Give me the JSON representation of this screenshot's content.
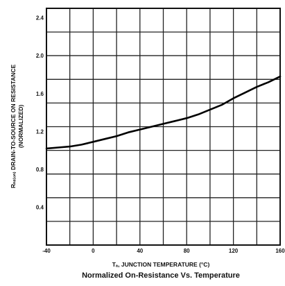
{
  "chart_data": {
    "type": "line",
    "title": "Normalized On-Resistance Vs. Temperature",
    "xlabel": "Tₐ, JUNCTION TEMPERATURE (°C)",
    "ylabel": "Rₙₛ₍ₒₙ₎, DRAIN-TO-SOURCE ON RESISTANCE (NORMALIZED)",
    "ylabel_line1": "Rₙₛ₍ₒₙ₎ DRAIN-TO-SOURCE ON RESISTANCE",
    "ylabel_line2": "(NORMALIZED)",
    "xlim": [
      -40,
      160
    ],
    "ylim": [
      0.0,
      2.5
    ],
    "grid": true,
    "x_ticks": [
      -40,
      0,
      40,
      80,
      120,
      160
    ],
    "x_tick_labels": [
      "-40",
      "0",
      "40",
      "80",
      "120",
      "160"
    ],
    "y_ticks": [
      0.4,
      0.8,
      1.2,
      1.6,
      2.0,
      2.4
    ],
    "y_tick_labels": [
      "0.4",
      "0.8",
      "1.2",
      "1.6",
      "2.0",
      "2.4"
    ],
    "series": [
      {
        "x": [
          -40,
          -30,
          -20,
          -10,
          0,
          10,
          20,
          30,
          40,
          50,
          60,
          70,
          80,
          90,
          100,
          110,
          120,
          130,
          140,
          150,
          160
        ],
        "y": [
          1.02,
          1.03,
          1.04,
          1.06,
          1.09,
          1.12,
          1.15,
          1.19,
          1.22,
          1.25,
          1.28,
          1.31,
          1.34,
          1.38,
          1.43,
          1.48,
          1.55,
          1.61,
          1.67,
          1.72,
          1.78
        ]
      }
    ]
  }
}
